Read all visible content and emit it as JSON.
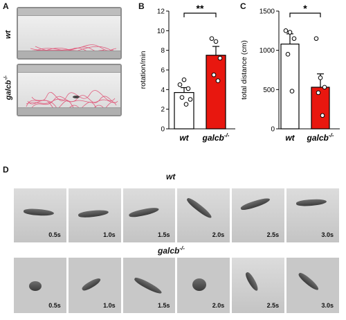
{
  "panels": {
    "a": "A",
    "b": "B",
    "c": "C",
    "d": "D"
  },
  "panel_a": {
    "label_wt": "wt",
    "label_mut_base": "galcb",
    "label_mut_sup": "-/-"
  },
  "chart_data": [
    {
      "type": "bar",
      "categories": [
        "wt",
        "galcb-/-"
      ],
      "tick_labels": [
        {
          "base": "wt",
          "sup": ""
        },
        {
          "base": "galcb",
          "sup": "-/-"
        }
      ],
      "values": [
        3.7,
        7.5
      ],
      "errors": [
        0.5,
        0.9
      ],
      "points": [
        [
          4.5,
          5.0,
          4.1,
          3.2,
          2.5,
          3.0
        ],
        [
          9.2,
          8.9,
          7.2,
          5.5,
          4.9
        ]
      ],
      "bar_colors": [
        "#ffffff",
        "#e8170f"
      ],
      "ylabel": "rotation/min",
      "ylim": [
        0,
        12
      ],
      "yticks": [
        0,
        2,
        4,
        6,
        8,
        10,
        12
      ],
      "significance": "**"
    },
    {
      "type": "bar",
      "categories": [
        "wt",
        "galcb-/-"
      ],
      "tick_labels": [
        {
          "base": "wt",
          "sup": ""
        },
        {
          "base": "galcb",
          "sup": "-/-"
        }
      ],
      "values": [
        1080,
        530
      ],
      "errors": [
        130,
        170
      ],
      "points": [
        [
          1250,
          1230,
          1150,
          950,
          480
        ],
        [
          1150,
          650,
          530,
          460,
          170
        ]
      ],
      "bar_colors": [
        "#ffffff",
        "#e8170f"
      ],
      "ylabel": "total distance (cm)",
      "ylim": [
        0,
        1500
      ],
      "yticks": [
        0,
        500,
        1000,
        1500
      ],
      "significance": "*"
    }
  ],
  "panel_d": {
    "row1_title": "wt",
    "row2_title_base": "galcb",
    "row2_title_sup": "-/-",
    "times": [
      "0.5s",
      "1.0s",
      "1.5s",
      "2.0s",
      "2.5s",
      "3.0s"
    ]
  }
}
